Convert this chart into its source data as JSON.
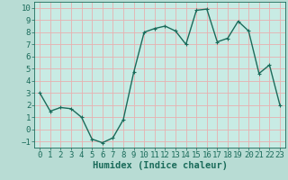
{
  "x": [
    0,
    1,
    2,
    3,
    4,
    5,
    6,
    7,
    8,
    9,
    10,
    11,
    12,
    13,
    14,
    15,
    16,
    17,
    18,
    19,
    20,
    21,
    22,
    23
  ],
  "y": [
    3,
    1.5,
    1.8,
    1.7,
    1.0,
    -0.8,
    -1.1,
    -0.7,
    0.8,
    4.7,
    8.0,
    8.3,
    8.5,
    8.1,
    7.0,
    9.8,
    9.9,
    7.2,
    7.5,
    8.9,
    8.1,
    4.6,
    5.3,
    2.0
  ],
  "line_color": "#1a6b5a",
  "marker": "+",
  "marker_size": 3,
  "bg_color": "#b8dcd4",
  "plot_bg_color": "#c8ebe4",
  "grid_color": "#e8b0b0",
  "xlabel": "Humidex (Indice chaleur)",
  "ylim": [
    -1.5,
    10.5
  ],
  "xlim": [
    -0.5,
    23.5
  ],
  "yticks": [
    -1,
    0,
    1,
    2,
    3,
    4,
    5,
    6,
    7,
    8,
    9,
    10
  ],
  "xticks": [
    0,
    1,
    2,
    3,
    4,
    5,
    6,
    7,
    8,
    9,
    10,
    11,
    12,
    13,
    14,
    15,
    16,
    17,
    18,
    19,
    20,
    21,
    22,
    23
  ],
  "linewidth": 1.0,
  "font_size": 6.5,
  "xlabel_fontsize": 7.5
}
